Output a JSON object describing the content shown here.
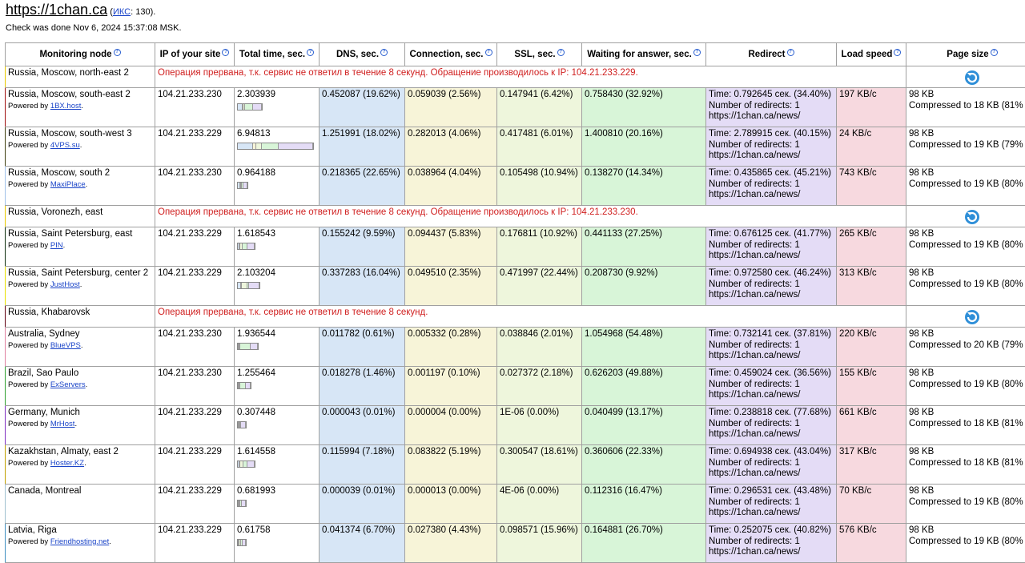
{
  "header": {
    "site": "https://1chan.ca",
    "iks_label": "ИКС",
    "iks_open": "(",
    "iks_value": ": 130).",
    "checked": "Check was done Nov 6, 2024 15:37:08 MSK."
  },
  "columns": [
    "Monitoring node",
    "IP of your site",
    "Total time, sec.",
    "DNS, sec.",
    "Connection, sec.",
    "SSL, sec.",
    "Waiting for answer, sec.",
    "Redirect",
    "Load speed",
    "Page size"
  ],
  "colors": {
    "dns": "#d7e6f6",
    "conn": "#f7f4d8",
    "ssl": "#eef6dc",
    "wait": "#d8f5d8",
    "redir": "#e4dcf6",
    "speed": "#f7d9df",
    "error": "#d02020",
    "link": "#1a44c8"
  },
  "rows": [
    {
      "type": "error",
      "node": "Russia, Moscow, north-east 2",
      "color": "#e8c800",
      "msg": "Операция прервана, т.к. сервис не ответил в течение 8 секунд. Обращение производилось к IP: 104.21.233.229."
    },
    {
      "type": "ok",
      "node": "Russia, Moscow, south-east 2",
      "color": "#a01010",
      "powered": "Powered by ",
      "host": "1BX.host",
      "ip": "104.21.233.230",
      "total": "2.303939",
      "bar": [
        19.62,
        2.56,
        6.42,
        32.92,
        34.4
      ],
      "bar_width": 0.33,
      "dns": "0.452087 (19.62%)",
      "conn": "0.059039 (2.56%)",
      "ssl": "0.147941 (6.42%)",
      "wait": "0.758430 (32.92%)",
      "redir_time": "Time: 0.792645 сек. (34.40%)",
      "redir_num": "Number of redirects: 1",
      "redir_url": "https://1chan.ca/news/",
      "speed": "197 KB/c",
      "size": "98 KB",
      "compressed": "Compressed to 18 KB (81%"
    },
    {
      "type": "ok",
      "node": "Russia, Moscow, south-west 3",
      "color": "#404010",
      "powered": "Powered by ",
      "host": "4VPS.su",
      "ip": "104.21.233.229",
      "total": "6.94813",
      "bar": [
        18.02,
        4.06,
        6.01,
        20.16,
        40.15
      ],
      "bar_width": 0.98,
      "dns": "1.251991 (18.02%)",
      "conn": "0.282013 (4.06%)",
      "ssl": "0.417481 (6.01%)",
      "wait": "1.400810 (20.16%)",
      "redir_time": "Time: 2.789915 сек. (40.15%)",
      "redir_num": "Number of redirects: 1",
      "redir_url": "https://1chan.ca/news/",
      "speed": "24 KB/c",
      "size": "98 KB",
      "compressed": "Compressed to 19 KB (79%"
    },
    {
      "type": "ok",
      "node": "Russia, Moscow, south 2",
      "color": "#a0c0e8",
      "powered": "Powered by ",
      "host": "MaxiPlace",
      "ip": "104.21.233.230",
      "total": "0.964188",
      "bar": [
        22.65,
        4.04,
        10.94,
        14.34,
        45.21
      ],
      "bar_width": 0.14,
      "dns": "0.218365 (22.65%)",
      "conn": "0.038964 (4.04%)",
      "ssl": "0.105498 (10.94%)",
      "wait": "0.138270 (14.34%)",
      "redir_time": "Time: 0.435865 сек. (45.21%)",
      "redir_num": "Number of redirects: 1",
      "redir_url": "https://1chan.ca/news/",
      "speed": "743 KB/c",
      "size": "98 KB",
      "compressed": "Compressed to 19 KB (80%"
    },
    {
      "type": "error",
      "node": "Russia, Voronezh, east",
      "color": "#e8c800",
      "msg": "Операция прервана, т.к. сервис не ответил в течение 8 секунд. Обращение производилось к IP: 104.21.233.230."
    },
    {
      "type": "ok",
      "node": "Russia, Saint Petersburg, east",
      "color": "#103010",
      "powered": "Powered by ",
      "host": "PIN",
      "ip": "104.21.233.229",
      "total": "1.618543",
      "bar": [
        9.59,
        5.83,
        10.92,
        27.25,
        41.77
      ],
      "bar_width": 0.23,
      "dns": "0.155242 (9.59%)",
      "conn": "0.094437 (5.83%)",
      "ssl": "0.176811 (10.92%)",
      "wait": "0.441133 (27.25%)",
      "redir_time": "Time: 0.676125 сек. (41.77%)",
      "redir_num": "Number of redirects: 1",
      "redir_url": "https://1chan.ca/news/",
      "speed": "265 KB/c",
      "size": "98 KB",
      "compressed": "Compressed to 19 KB (80%"
    },
    {
      "type": "ok",
      "node": "Russia, Saint Petersburg, center 2",
      "color": "#e8e000",
      "powered": "Powered by ",
      "host": "JustHost",
      "ip": "104.21.233.229",
      "total": "2.103204",
      "bar": [
        16.04,
        2.35,
        22.44,
        9.92,
        46.24
      ],
      "bar_width": 0.3,
      "dns": "0.337283 (16.04%)",
      "conn": "0.049510 (2.35%)",
      "ssl": "0.471997 (22.44%)",
      "wait": "0.208730 (9.92%)",
      "redir_time": "Time: 0.972580 сек. (46.24%)",
      "redir_num": "Number of redirects: 1",
      "redir_url": "https://1chan.ca/news/",
      "speed": "313 KB/c",
      "size": "98 KB",
      "compressed": "Compressed to 19 KB (80%"
    },
    {
      "type": "error",
      "node": "Russia, Khabarovsk",
      "color": "#600010",
      "msg": "Операция прервана, т.к. сервис не ответил в течение 8 секунд."
    },
    {
      "type": "ok",
      "node": "Australia, Sydney",
      "color": "#e080a0",
      "powered": "Powered by ",
      "host": "BlueVPS",
      "ip": "104.21.233.230",
      "total": "1.936544",
      "bar": [
        0.61,
        0.28,
        2.01,
        54.48,
        37.81
      ],
      "bar_width": 0.28,
      "dns": "0.011782 (0.61%)",
      "conn": "0.005332 (0.28%)",
      "ssl": "0.038846 (2.01%)",
      "wait": "1.054968 (54.48%)",
      "redir_time": "Time: 0.732141 сек. (37.81%)",
      "redir_num": "Number of redirects: 1",
      "redir_url": "https://1chan.ca/news/",
      "speed": "220 KB/c",
      "size": "98 KB",
      "compressed": "Compressed to 20 KB (79%"
    },
    {
      "type": "ok",
      "node": "Brazil, Sao Paulo",
      "color": "#30a030",
      "powered": "Powered by ",
      "host": "ExServers",
      "ip": "104.21.233.230",
      "total": "1.255464",
      "bar": [
        1.46,
        0.1,
        2.18,
        49.88,
        36.56
      ],
      "bar_width": 0.18,
      "dns": "0.018278 (1.46%)",
      "conn": "0.001197 (0.10%)",
      "ssl": "0.027372 (2.18%)",
      "wait": "0.626203 (49.88%)",
      "redir_time": "Time: 0.459024 сек. (36.56%)",
      "redir_num": "Number of redirects: 1",
      "redir_url": "https://1chan.ca/news/",
      "speed": "155 KB/c",
      "size": "98 KB",
      "compressed": "Compressed to 19 KB (80%"
    },
    {
      "type": "ok",
      "node": "Germany, Munich",
      "color": "#8030c0",
      "powered": "Powered by ",
      "host": "MrHost",
      "ip": "104.21.233.229",
      "total": "0.307448",
      "bar": [
        0.01,
        0.0,
        0.0,
        13.17,
        77.68
      ],
      "bar_width": 0.05,
      "dns": "0.000043 (0.01%)",
      "conn": "0.000004 (0.00%)",
      "ssl": "1E-06 (0.00%)",
      "wait": "0.040499 (13.17%)",
      "redir_time": "Time: 0.238818 сек. (77.68%)",
      "redir_num": "Number of redirects: 1",
      "redir_url": "https://1chan.ca/news/",
      "speed": "661 KB/c",
      "size": "98 KB",
      "compressed": "Compressed to 18 KB (81%"
    },
    {
      "type": "ok",
      "node": "Kazakhstan, Almaty, east 2",
      "color": "#c0a000",
      "powered": "Powered by ",
      "host": "Hoster.KZ",
      "ip": "104.21.233.229",
      "total": "1.614558",
      "bar": [
        7.18,
        5.19,
        18.61,
        22.33,
        43.04
      ],
      "bar_width": 0.23,
      "dns": "0.115994 (7.18%)",
      "conn": "0.083822 (5.19%)",
      "ssl": "0.300547 (18.61%)",
      "wait": "0.360606 (22.33%)",
      "redir_time": "Time: 0.694938 сек. (43.04%)",
      "redir_num": "Number of redirects: 1",
      "redir_url": "https://1chan.ca/news/",
      "speed": "317 KB/c",
      "size": "98 KB",
      "compressed": "Compressed to 18 KB (81%"
    },
    {
      "type": "ok",
      "node": "Canada, Montreal",
      "color": "#a0c0d0",
      "ip": "104.21.233.229",
      "total": "0.681993",
      "bar": [
        0.01,
        0.0,
        0.0,
        16.47,
        43.48
      ],
      "bar_width": 0.1,
      "dns": "0.000039 (0.01%)",
      "conn": "0.000013 (0.00%)",
      "ssl": "4E-06 (0.00%)",
      "wait": "0.112316 (16.47%)",
      "redir_time": "Time: 0.296531 сек. (43.48%)",
      "redir_num": "Number of redirects: 1",
      "redir_url": "https://1chan.ca/news/",
      "speed": "70 KB/c",
      "size": "98 KB",
      "compressed": "Compressed to 19 KB (80%"
    },
    {
      "type": "ok",
      "node": "Latvia, Riga",
      "color": "#4090c0",
      "powered": "Powered by ",
      "host": "Friendhosting.net",
      "ip": "104.21.233.229",
      "total": "0.61758",
      "bar": [
        6.7,
        4.43,
        15.96,
        26.7,
        40.82
      ],
      "bar_width": 0.09,
      "dns": "0.041374 (6.70%)",
      "conn": "0.027380 (4.43%)",
      "ssl": "0.098571 (15.96%)",
      "wait": "0.164881 (26.70%)",
      "redir_time": "Time: 0.252075 сек. (40.82%)",
      "redir_num": "Number of redirects: 1",
      "redir_url": "https://1chan.ca/news/",
      "speed": "576 KB/c",
      "size": "98 KB",
      "compressed": "Compressed to 19 KB (80%"
    }
  ]
}
